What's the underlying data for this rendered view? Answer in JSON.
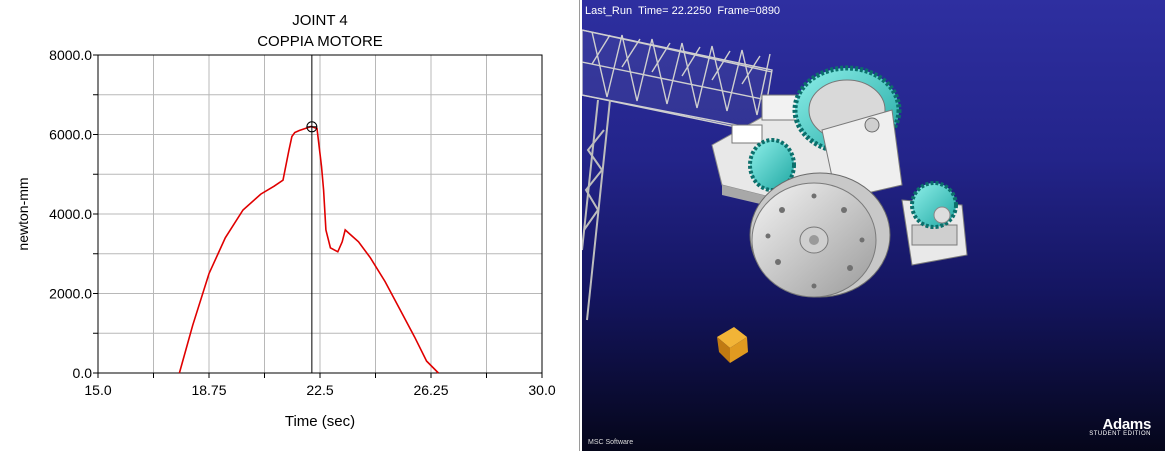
{
  "plot": {
    "title_line1": "JOINT 4",
    "title_line2": "COPPIA MOTORE",
    "xlabel": "Time (sec)",
    "ylabel": "newton-mm",
    "cursor_time": 22.225
  },
  "animation": {
    "run_name": "Last_Run",
    "time_text": "Time= 22.2250",
    "frame_text": "Frame=0890",
    "brand_name": "Adams",
    "brand_sub": "STUDENT EDITION",
    "vendor": "MSC Software",
    "colors": {
      "background_top": "#2e2fa0",
      "background_bottom": "#05061a",
      "gear_accent": "#35d6d0",
      "cube": "#e09a20"
    }
  },
  "chart_data": {
    "type": "line",
    "title": "JOINT 4 COPPIA MOTORE",
    "xlabel": "Time (sec)",
    "ylabel": "newton-mm",
    "xlim": [
      15.0,
      30.0
    ],
    "ylim": [
      0.0,
      8000.0
    ],
    "xticks": [
      "15.0",
      "18.75",
      "22.5",
      "26.25",
      "30.0"
    ],
    "yticks": [
      "0.0",
      "2000.0",
      "4000.0",
      "6000.0",
      "8000.0"
    ],
    "grid": true,
    "series": [
      {
        "color": "#e00000",
        "x": [
          17.75,
          18.2,
          18.75,
          19.3,
          19.9,
          20.5,
          20.95,
          21.25,
          21.45,
          21.55,
          21.65,
          21.8,
          22.0,
          22.2,
          22.4,
          22.55,
          22.62,
          22.7,
          22.85,
          23.1,
          23.25,
          23.35,
          23.5,
          23.8,
          24.2,
          24.7,
          25.2,
          25.7,
          26.1,
          26.5
        ],
        "y": [
          0,
          1200,
          2500,
          3400,
          4100,
          4500,
          4700,
          4850,
          5600,
          5950,
          6050,
          6100,
          6150,
          6200,
          6150,
          5200,
          4600,
          3600,
          3150,
          3050,
          3300,
          3600,
          3500,
          3300,
          2900,
          2300,
          1600,
          900,
          300,
          0
        ]
      }
    ]
  }
}
